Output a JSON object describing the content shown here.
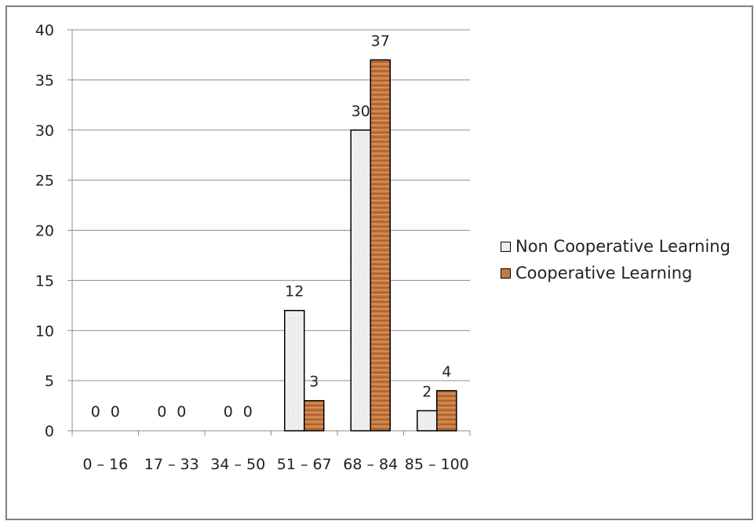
{
  "chart_data": {
    "type": "bar",
    "title": "",
    "xlabel": "",
    "ylabel": "",
    "categories": [
      "0 – 16",
      "17 – 33",
      "34 – 50",
      "51 – 67",
      "68 – 84",
      "85 – 100"
    ],
    "series": [
      {
        "name": "Non Cooperative Learning",
        "values": [
          0,
          0,
          0,
          12,
          30,
          2
        ],
        "color": "#ececec"
      },
      {
        "name": "Cooperative Learning",
        "values": [
          0,
          0,
          0,
          3,
          37,
          4
        ],
        "color": "#c67a42"
      }
    ],
    "ylim": [
      0,
      40
    ],
    "yticks": [
      0,
      5,
      10,
      15,
      20,
      25,
      30,
      35,
      40
    ],
    "grid": true,
    "legend": "right",
    "data_labels": true
  }
}
